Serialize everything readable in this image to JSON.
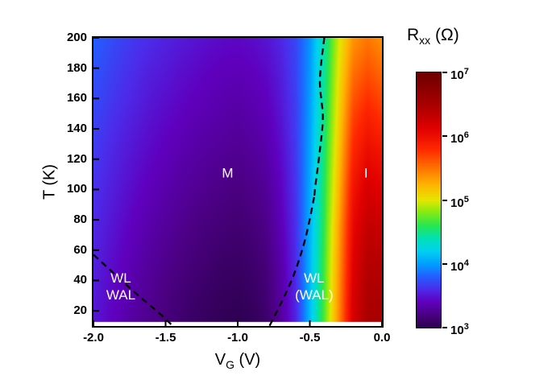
{
  "figure": {
    "background": "#ffffff",
    "x_axis": {
      "label_pre": "V",
      "label_sub": "G",
      "label_post": " (V)",
      "min": -2.0,
      "max": 0.0,
      "ticks": [
        {
          "v": -2.0,
          "label": "-2.0"
        },
        {
          "v": -1.5,
          "label": "-1.5"
        },
        {
          "v": -1.0,
          "label": "-1.0"
        },
        {
          "v": -0.5,
          "label": "-0.5"
        },
        {
          "v": 0.0,
          "label": "0.0"
        }
      ]
    },
    "y_axis": {
      "label": "T (K)",
      "min": 10,
      "max": 200,
      "ticks": [
        {
          "v": 20,
          "label": "20"
        },
        {
          "v": 40,
          "label": "40"
        },
        {
          "v": 60,
          "label": "60"
        },
        {
          "v": 80,
          "label": "80"
        },
        {
          "v": 100,
          "label": "100"
        },
        {
          "v": 120,
          "label": "120"
        },
        {
          "v": 140,
          "label": "140"
        },
        {
          "v": 160,
          "label": "160"
        },
        {
          "v": 180,
          "label": "180"
        },
        {
          "v": 200,
          "label": "200"
        }
      ]
    },
    "colorbar": {
      "title_pre": "R",
      "title_sub": "xx",
      "title_post": " (Ω)",
      "ticks": [
        {
          "t": 1.0,
          "base": "10",
          "exp": "7"
        },
        {
          "t": 0.75,
          "base": "10",
          "exp": "6"
        },
        {
          "t": 0.5,
          "base": "10",
          "exp": "5"
        },
        {
          "t": 0.25,
          "base": "10",
          "exp": "4"
        },
        {
          "t": 0.0,
          "base": "10",
          "exp": "3"
        }
      ]
    }
  },
  "chart_data": {
    "type": "heatmap",
    "title": "",
    "xlabel": "V_G (V)",
    "ylabel": "T (K)",
    "zlabel": "R_xx (Ohm)",
    "z_scale": "log10",
    "z_range_log10": [
      3,
      7
    ],
    "x": [
      -2.0,
      -1.9,
      -1.8,
      -1.7,
      -1.6,
      -1.5,
      -1.4,
      -1.3,
      -1.2,
      -1.1,
      -1.0,
      -0.9,
      -0.8,
      -0.7,
      -0.6,
      -0.5,
      -0.4,
      -0.3,
      -0.2,
      -0.1,
      0.0
    ],
    "y": [
      10,
      25,
      50,
      75,
      100,
      125,
      150,
      175,
      200
    ],
    "z_log10": [
      [
        3.5,
        3.42,
        3.35,
        3.28,
        3.22,
        3.17,
        3.12,
        3.08,
        3.05,
        3.02,
        3.0,
        3.03,
        3.1,
        3.28,
        3.55,
        4.1,
        4.7,
        5.4,
        6.2,
        6.5,
        6.5
      ],
      [
        3.52,
        3.44,
        3.37,
        3.3,
        3.24,
        3.19,
        3.14,
        3.1,
        3.07,
        3.04,
        3.03,
        3.06,
        3.13,
        3.3,
        3.56,
        4.1,
        4.68,
        5.38,
        6.18,
        6.47,
        6.47
      ],
      [
        3.55,
        3.47,
        3.4,
        3.34,
        3.28,
        3.23,
        3.19,
        3.15,
        3.12,
        3.09,
        3.08,
        3.11,
        3.17,
        3.33,
        3.58,
        4.08,
        4.66,
        5.34,
        6.12,
        6.42,
        6.4
      ],
      [
        3.58,
        3.51,
        3.44,
        3.38,
        3.33,
        3.28,
        3.24,
        3.2,
        3.17,
        3.15,
        3.13,
        3.16,
        3.22,
        3.37,
        3.6,
        4.06,
        4.62,
        5.3,
        6.05,
        6.32,
        6.28
      ],
      [
        3.62,
        3.55,
        3.49,
        3.43,
        3.38,
        3.34,
        3.3,
        3.26,
        3.23,
        3.21,
        3.19,
        3.22,
        3.27,
        3.41,
        3.62,
        4.04,
        4.58,
        5.22,
        5.95,
        6.18,
        6.12
      ],
      [
        3.66,
        3.59,
        3.53,
        3.48,
        3.43,
        3.39,
        3.35,
        3.32,
        3.29,
        3.27,
        3.25,
        3.28,
        3.33,
        3.45,
        3.64,
        4.02,
        4.54,
        5.15,
        5.82,
        6.02,
        5.95
      ],
      [
        3.7,
        3.64,
        3.58,
        3.53,
        3.48,
        3.44,
        3.41,
        3.37,
        3.35,
        3.33,
        3.31,
        3.34,
        3.38,
        3.49,
        3.66,
        4.0,
        4.5,
        5.08,
        5.68,
        5.85,
        5.75
      ],
      [
        3.75,
        3.69,
        3.63,
        3.58,
        3.53,
        3.5,
        3.46,
        3.43,
        3.4,
        3.38,
        3.37,
        3.39,
        3.43,
        3.53,
        3.68,
        3.98,
        4.46,
        5.02,
        5.52,
        5.66,
        5.56
      ],
      [
        3.8,
        3.74,
        3.68,
        3.63,
        3.59,
        3.55,
        3.52,
        3.49,
        3.46,
        3.44,
        3.43,
        3.45,
        3.49,
        3.57,
        3.7,
        3.96,
        4.42,
        4.96,
        5.36,
        5.48,
        5.38
      ]
    ],
    "colormap": [
      [
        0.0,
        45,
        0,
        80
      ],
      [
        0.05,
        75,
        0,
        130
      ],
      [
        0.1,
        95,
        0,
        190
      ],
      [
        0.15,
        75,
        45,
        235
      ],
      [
        0.2,
        35,
        95,
        255
      ],
      [
        0.25,
        0,
        160,
        255
      ],
      [
        0.3,
        0,
        210,
        240
      ],
      [
        0.35,
        0,
        225,
        180
      ],
      [
        0.4,
        40,
        230,
        80
      ],
      [
        0.45,
        130,
        235,
        20
      ],
      [
        0.5,
        230,
        230,
        0
      ],
      [
        0.56,
        255,
        180,
        0
      ],
      [
        0.63,
        255,
        110,
        0
      ],
      [
        0.7,
        255,
        40,
        0
      ],
      [
        0.78,
        225,
        0,
        0
      ],
      [
        0.87,
        170,
        0,
        0
      ],
      [
        1.0,
        110,
        0,
        0
      ]
    ],
    "phase_boundaries": [
      {
        "name": "WL-WAL region boundary (lower left)",
        "points": [
          [
            -2.0,
            57
          ],
          [
            -1.85,
            44
          ],
          [
            -1.7,
            31
          ],
          [
            -1.55,
            19
          ],
          [
            -1.45,
            10
          ]
        ]
      },
      {
        "name": "M-I boundary (upper)",
        "points": [
          [
            -0.4,
            200
          ],
          [
            -0.43,
            172
          ],
          [
            -0.41,
            148
          ],
          [
            -0.43,
            126
          ],
          [
            -0.46,
            104
          ],
          [
            -0.47,
            95
          ]
        ]
      },
      {
        "name": "WL(WAL) region boundary (lower)",
        "points": [
          [
            -0.47,
            95
          ],
          [
            -0.53,
            68
          ],
          [
            -0.61,
            44
          ],
          [
            -0.7,
            25
          ],
          [
            -0.78,
            10
          ]
        ]
      }
    ],
    "annotations": [
      {
        "x": -1.07,
        "T": 111,
        "lines": [
          "M"
        ]
      },
      {
        "x": -0.11,
        "T": 111,
        "lines": [
          "I"
        ]
      },
      {
        "x": -1.81,
        "T": 36,
        "lines": [
          "WL",
          "WAL"
        ]
      },
      {
        "x": -0.47,
        "T": 36,
        "lines": [
          "WL",
          "(WAL)"
        ]
      }
    ],
    "legend": null,
    "grid": false
  }
}
